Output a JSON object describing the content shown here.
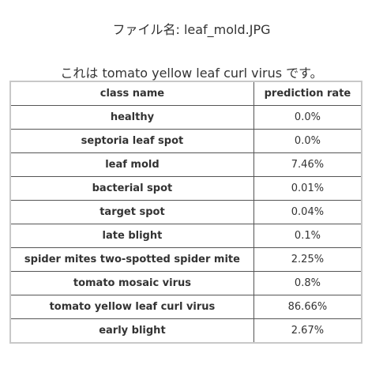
{
  "filename_line": "ファイル名: leaf_mold.JPG",
  "result_line": "これは tomato yellow leaf curl virus です。",
  "table": {
    "headers": {
      "class_name": "class name",
      "prediction_rate": "prediction rate"
    },
    "rows": [
      {
        "name": "healthy",
        "rate": "0.0%"
      },
      {
        "name": "septoria leaf spot",
        "rate": "0.0%"
      },
      {
        "name": "leaf mold",
        "rate": "7.46%"
      },
      {
        "name": "bacterial spot",
        "rate": "0.01%"
      },
      {
        "name": "target spot",
        "rate": "0.04%"
      },
      {
        "name": "late blight",
        "rate": "0.1%"
      },
      {
        "name": "spider mites two-spotted spider mite",
        "rate": "2.25%"
      },
      {
        "name": "tomato mosaic virus",
        "rate": "0.8%"
      },
      {
        "name": "tomato yellow leaf curl virus",
        "rate": "86.66%"
      },
      {
        "name": "early blight",
        "rate": "2.67%"
      }
    ]
  }
}
